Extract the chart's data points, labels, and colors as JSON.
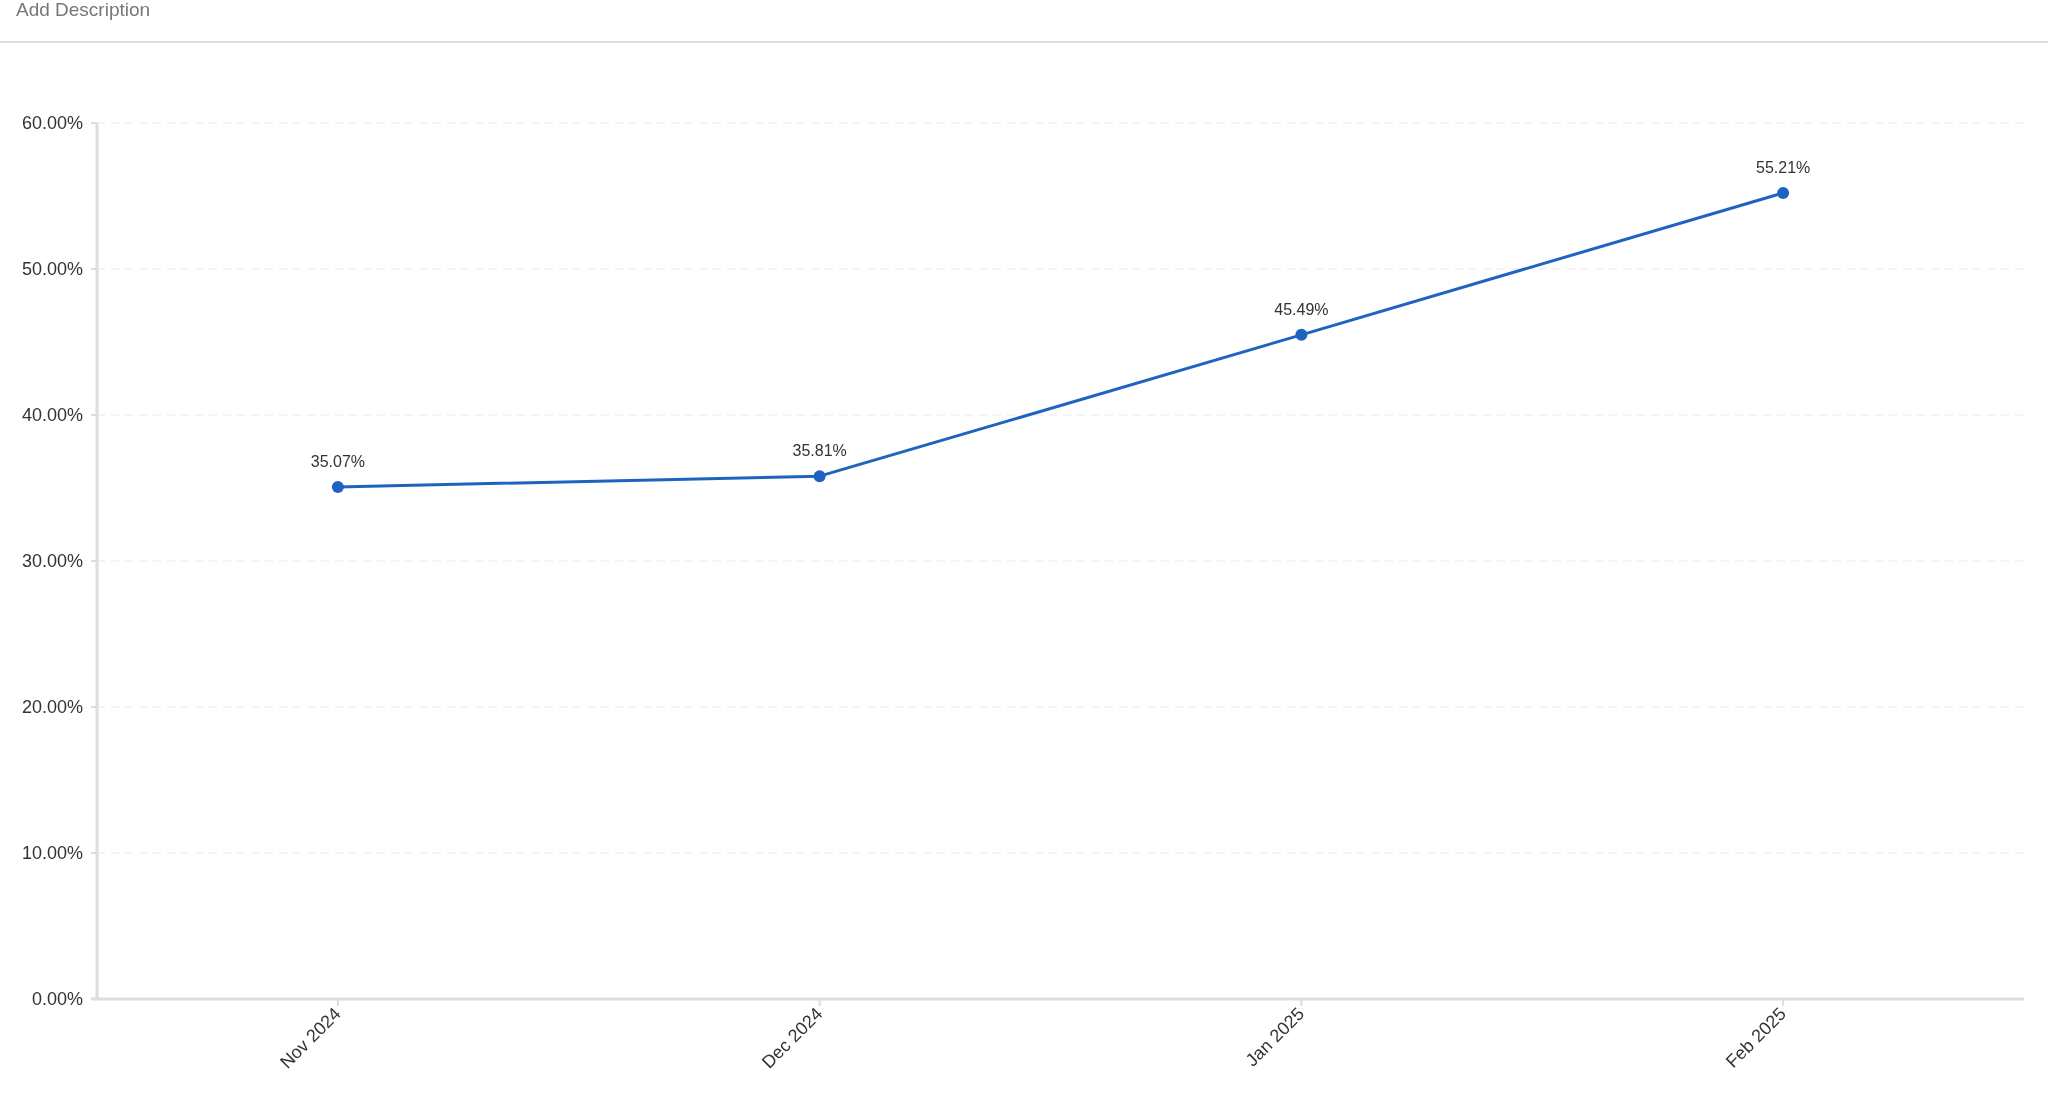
{
  "chart_data": {
    "type": "line",
    "subtitle": "Add Description",
    "categories": [
      "Nov 2024",
      "Dec 2024",
      "Jan 2025",
      "Feb 2025"
    ],
    "series": [
      {
        "color": "#1f63c0",
        "values": [
          35.07,
          35.81,
          45.49,
          55.21
        ],
        "value_labels": [
          "35.07%",
          "35.81%",
          "45.49%",
          "55.21%"
        ]
      }
    ],
    "ylim": [
      0,
      60
    ],
    "yticks": [
      {
        "value": 0,
        "label": "0.00%"
      },
      {
        "value": 10,
        "label": "10.00%"
      },
      {
        "value": 20,
        "label": "20.00%"
      },
      {
        "value": 30,
        "label": "30.00%"
      },
      {
        "value": 40,
        "label": "40.00%"
      },
      {
        "value": 50,
        "label": "50.00%"
      },
      {
        "value": 60,
        "label": "60.00%"
      }
    ],
    "grid": "y",
    "marker": "circle",
    "line_style": "solid"
  }
}
